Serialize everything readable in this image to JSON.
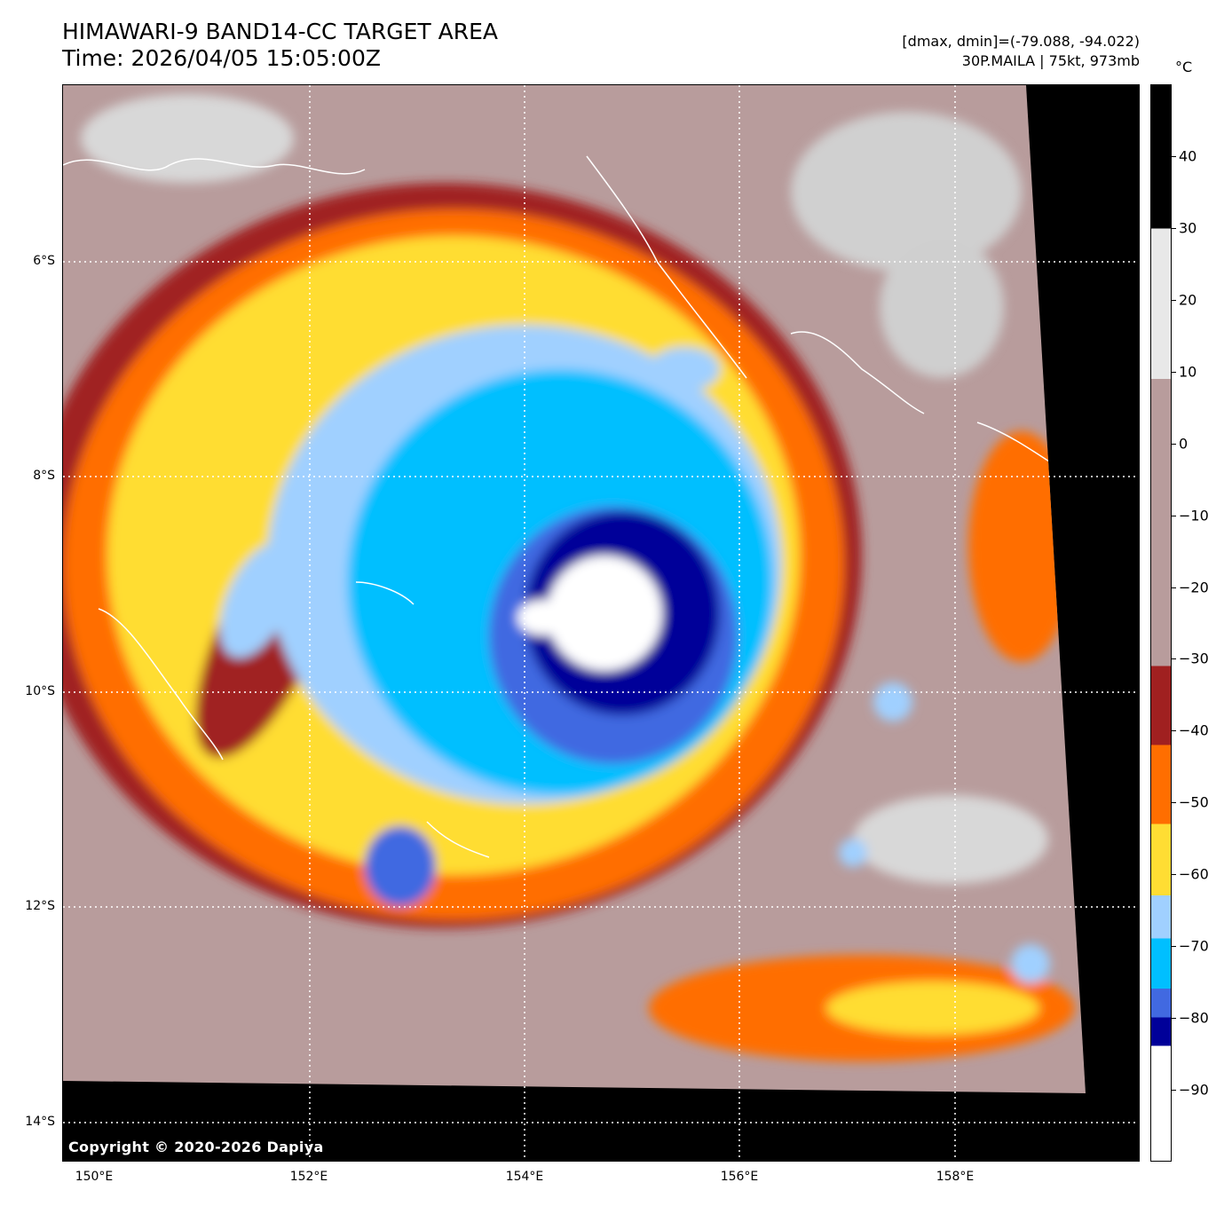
{
  "header": {
    "title": "HIMAWARI-9 BAND14-CC TARGET AREA",
    "time": "Time: 2026/04/05 15:05:00Z",
    "range": "[dmax, dmin]=(-79.088, -94.022)",
    "storm": "30P.MAILA | 75kt, 973mb"
  },
  "map": {
    "copyright": "Copyright © 2020-2026 Dapiya",
    "lat_labels": [
      "6°S",
      "8°S",
      "10°S",
      "12°S",
      "14°S"
    ],
    "lon_labels": [
      "150°E",
      "152°E",
      "154°E",
      "156°E",
      "158°E"
    ],
    "grid": "dotted white",
    "coastlines": "white"
  },
  "colorbar": {
    "unit": "°C",
    "tick_labels": [
      "40",
      "30",
      "20",
      "10",
      "0",
      "−10",
      "−20",
      "−30",
      "−40",
      "−50",
      "−60",
      "−70",
      "−80",
      "−90"
    ],
    "ticks": [
      40,
      30,
      20,
      10,
      0,
      -10,
      -20,
      -30,
      -40,
      -50,
      -60,
      -70,
      -80,
      -90
    ],
    "range": [
      -100,
      50
    ],
    "bands": [
      {
        "from": 50,
        "to": 30,
        "color": "#000000"
      },
      {
        "from": 30,
        "to": 9,
        "color": "#e8e8e8"
      },
      {
        "from": 9,
        "to": -31,
        "color": "#b89c9c"
      },
      {
        "from": -31,
        "to": -42,
        "color": "#a02020"
      },
      {
        "from": -42,
        "to": -53,
        "color": "#ff6e00"
      },
      {
        "from": -53,
        "to": -63,
        "color": "#ffdd33"
      },
      {
        "from": -63,
        "to": -69,
        "color": "#a0d0ff"
      },
      {
        "from": -69,
        "to": -76,
        "color": "#00bfff"
      },
      {
        "from": -76,
        "to": -80,
        "color": "#4169e1"
      },
      {
        "from": -80,
        "to": -84,
        "color": "#000099"
      },
      {
        "from": -84,
        "to": -100,
        "color": "#ffffff"
      }
    ]
  },
  "palette": {
    "eye_core": "#ffffff",
    "navy": "#000099",
    "royal_blue": "#4169e1",
    "deep_sky": "#00bfff",
    "light_blue": "#a0d0ff",
    "yellow": "#ffdd33",
    "orange": "#ff6e00",
    "red": "#a02020",
    "mauve": "#b89c9c",
    "gray": "#d8d8d8",
    "space": "#000000"
  }
}
